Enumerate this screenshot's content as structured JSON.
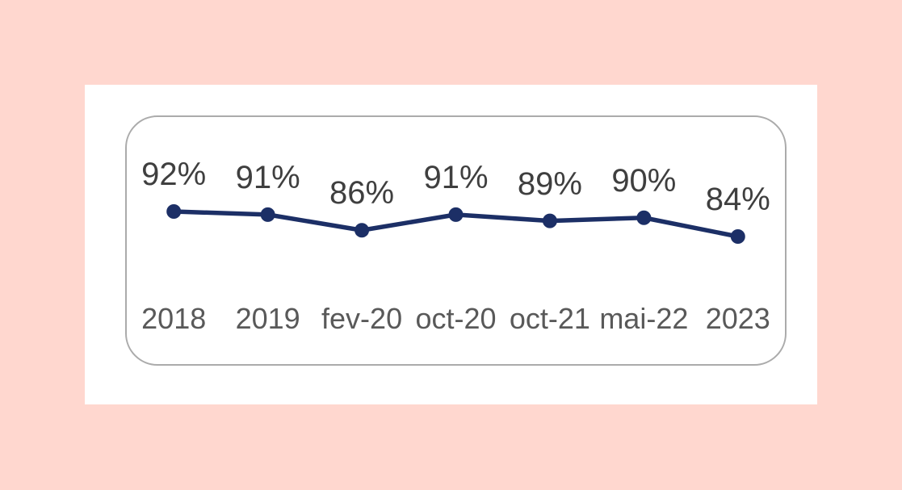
{
  "page": {
    "background_color": "#ffd7cf",
    "card_color": "#ffffff",
    "frame_border_color": "#ababab"
  },
  "chart_data": {
    "type": "line",
    "categories": [
      "2018",
      "2019",
      "fev-20",
      "oct-20",
      "oct-21",
      "mai-22",
      "2023"
    ],
    "values": [
      92,
      91,
      86,
      91,
      89,
      90,
      84
    ],
    "data_labels": [
      "92%",
      "91%",
      "86%",
      "91%",
      "89%",
      "90%",
      "84%"
    ],
    "title": "",
    "xlabel": "",
    "ylabel": "",
    "ylim": [
      80,
      96
    ],
    "grid": false,
    "legend_position": "none",
    "line_color": "#1c2f66",
    "marker_color": "#1c2f66",
    "marker_shape": "circle",
    "data_label_color": "#3f3f3f",
    "axis_tick_color": "#595959"
  }
}
